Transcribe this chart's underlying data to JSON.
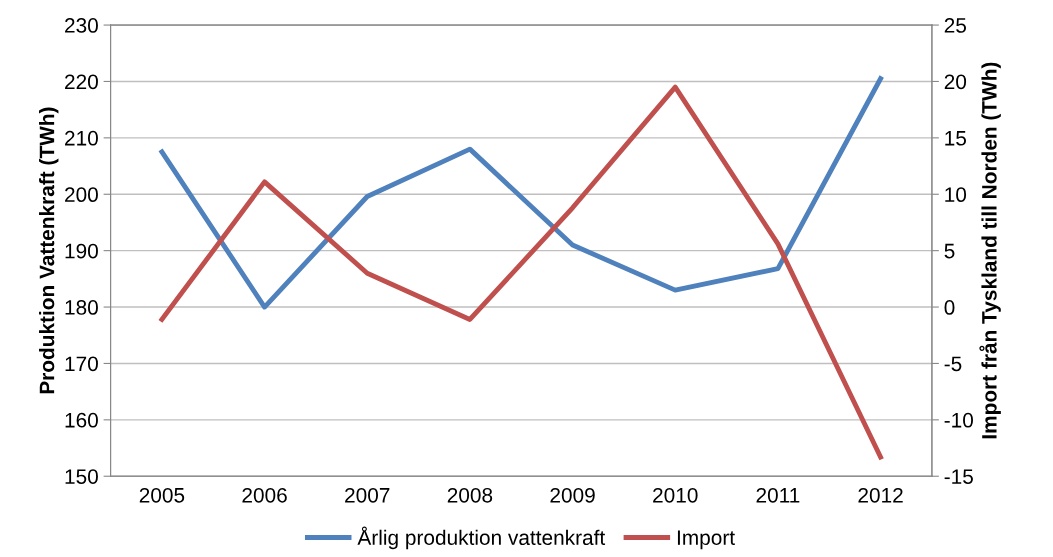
{
  "chart_data": {
    "type": "line",
    "categories": [
      "2005",
      "2006",
      "2007",
      "2008",
      "2009",
      "2010",
      "2011",
      "2012"
    ],
    "series": [
      {
        "name": "Årlig produktion vattenkraft",
        "color": "#4f81bd",
        "values": [
          207.5,
          180,
          199.6,
          208,
          191,
          183,
          186.8,
          220.5
        ]
      },
      {
        "name": "Import",
        "color": "#c0504d",
        "axis": "y2",
        "values": [
          -1.1,
          11.1,
          3.0,
          -1.1,
          8.8,
          19.5,
          5.6,
          -13.3
        ]
      }
    ],
    "ylabel": "Produktion Vattenkraft (TWh)",
    "y2label": "Import från Tyskland till Norden (TWh)",
    "ylim": [
      150,
      230
    ],
    "yticks": [
      150,
      160,
      170,
      180,
      190,
      200,
      210,
      220,
      230
    ],
    "y2lim": [
      -15,
      25
    ],
    "y2ticks": [
      -15,
      -10,
      -5,
      0,
      5,
      10,
      15,
      20,
      25
    ],
    "grid": "y",
    "legend": "bottom",
    "marker": "none",
    "line_style": "solid"
  }
}
